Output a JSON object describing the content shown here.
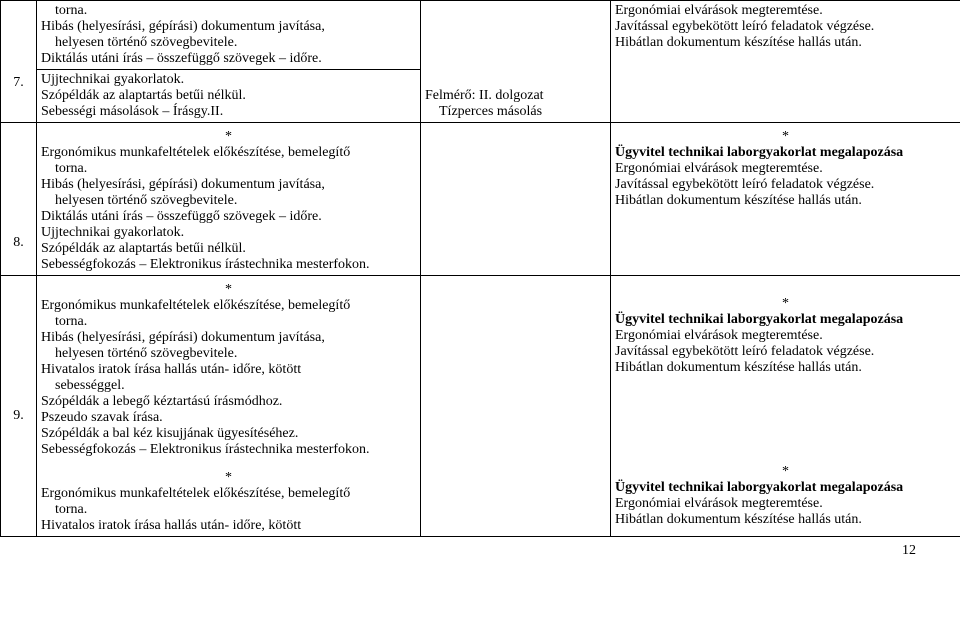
{
  "rows": [
    {
      "num": "",
      "col1": [
        {
          "text": "torna.",
          "indent": true
        },
        {
          "text": "Hibás (helyesírási, gépírási) dokumentum javítása,",
          "indent": false
        },
        {
          "text": "helyesen történő szövegbevitele.",
          "indent": true
        },
        {
          "text": "Diktálás utáni írás – összefüggő szövegek – időre.",
          "indent": false
        }
      ],
      "col2": [],
      "col3": [
        {
          "text": "Ergonómiai elvárások megteremtése.",
          "indent": false
        },
        {
          "text": "Javítással egybekötött leíró feladatok végzése.",
          "indent": false
        },
        {
          "text": "Hibátlan dokumentum készítése hallás után.",
          "indent": false
        }
      ]
    },
    {
      "num": "7.",
      "col1": [
        {
          "text": "Ujjtechnikai gyakorlatok.",
          "indent": false
        },
        {
          "text": "Szópéldák az alaptartás betűi nélkül.",
          "indent": false
        },
        {
          "text": "Sebességi másolások – Írásgy.II.",
          "indent": false
        }
      ],
      "col2": [
        {
          "text": "Felmérő: II. dolgozat",
          "indent": false
        },
        {
          "text": "Tízperces másolás",
          "indent": true
        }
      ],
      "col3": []
    },
    {
      "num": "8.",
      "col1_pre": [
        {
          "text": "*",
          "center": true
        },
        {
          "text": "Ergonómikus munkafeltételek előkészítése, bemelegítő",
          "indent": false
        },
        {
          "text": "torna.",
          "indent": true
        },
        {
          "text": "Hibás (helyesírási, gépírási) dokumentum javítása,",
          "indent": false
        },
        {
          "text": "helyesen történő szövegbevitele.",
          "indent": true
        },
        {
          "text": "Diktálás utáni írás – összefüggő szövegek – időre.",
          "indent": false
        }
      ],
      "col1": [
        {
          "text": "Ujjtechnikai gyakorlatok.",
          "indent": false
        },
        {
          "text": "Szópéldák az alaptartás betűi nélkül.",
          "indent": false
        },
        {
          "text": "Sebességfokozás – Elektronikus írástechnika mesterfokon.",
          "indent": false
        }
      ],
      "col2": [],
      "col3": [
        {
          "text": "*",
          "center": true
        },
        {
          "text": "Ügyvitel technikai laborgyakorlat megalapozása",
          "indent": false,
          "bold": true
        },
        {
          "text": "Ergonómiai elvárások megteremtése.",
          "indent": false
        },
        {
          "text": "Javítással egybekötött leíró feladatok végzése.",
          "indent": false
        },
        {
          "text": "Hibátlan dokumentum készítése hallás után.",
          "indent": false
        }
      ]
    },
    {
      "num": "9.",
      "col1_pre": [
        {
          "text": "*",
          "center": true
        },
        {
          "text": "Ergonómikus munkafeltételek előkészítése, bemelegítő",
          "indent": false
        },
        {
          "text": "torna.",
          "indent": true
        },
        {
          "text": "Hibás (helyesírási, gépírási) dokumentum javítása,",
          "indent": false
        },
        {
          "text": "helyesen történő szövegbevitele.",
          "indent": true
        },
        {
          "text": "Hivatalos iratok írása hallás után- időre, kötött",
          "indent": false
        },
        {
          "text": "sebességgel.",
          "indent": true
        }
      ],
      "col1": [
        {
          "text": "Szópéldák a lebegő kéztartású írásmódhoz.",
          "indent": false
        },
        {
          "text": "Pszeudo szavak írása.",
          "indent": false
        },
        {
          "text": "Szópéldák a bal kéz kisujjának ügyesítéséhez.",
          "indent": false
        },
        {
          "text": "Sebességfokozás – Elektronikus írástechnika mesterfokon.",
          "indent": false
        }
      ],
      "col1_post": [
        {
          "text": "*",
          "center": true
        },
        {
          "text": "Ergonómikus munkafeltételek előkészítése, bemelegítő",
          "indent": false
        },
        {
          "text": "torna.",
          "indent": true
        },
        {
          "text": "Hivatalos iratok írása hallás után- időre, kötött",
          "indent": false
        }
      ],
      "col2": [],
      "col3": [
        {
          "text": "*",
          "center": true
        },
        {
          "text": "Ügyvitel technikai laborgyakorlat megalapozása",
          "indent": false,
          "bold": true
        },
        {
          "text": "Ergonómiai elvárások megteremtése.",
          "indent": false
        },
        {
          "text": "Javítással egybekötött leíró feladatok végzése.",
          "indent": false
        },
        {
          "text": "Hibátlan dokumentum készítése hallás után.",
          "indent": false
        }
      ],
      "col3_post": [
        {
          "text": "*",
          "center": true
        },
        {
          "text": "Ügyvitel technikai laborgyakorlat megalapozása",
          "indent": false,
          "bold": true
        },
        {
          "text": "Ergonómiai elvárások megteremtése.",
          "indent": false
        },
        {
          "text": "Hibátlan dokumentum készítése hallás után.",
          "indent": false
        }
      ]
    }
  ],
  "pageNumber": "12"
}
